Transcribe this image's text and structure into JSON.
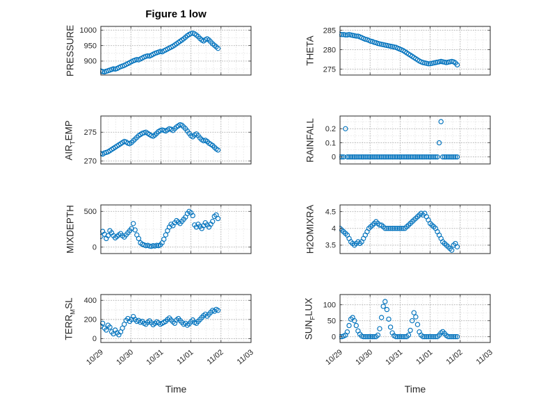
{
  "figure": {
    "title": "Figure 1 low",
    "xlabel": "Time",
    "marker_color": "#0072BD",
    "axes_color": "#262626",
    "grid_color": "#ababab",
    "minor_grid_color": "#e2e2e2",
    "background": "#ffffff"
  },
  "chart_data": {
    "type": "scatter",
    "marker": "open-circle",
    "grid": "dotted, major and minor",
    "legend": "none",
    "xlabel": "Time",
    "xlim": [
      0,
      5
    ],
    "xticks": [
      0,
      1,
      2,
      3,
      4,
      5
    ],
    "x_tick_labels": [
      "10/29",
      "10/30",
      "10/31",
      "11/01",
      "11/02",
      "11/03"
    ],
    "x_days": [
      0,
      0.06,
      0.12,
      0.18,
      0.24,
      0.3,
      0.36,
      0.42,
      0.48,
      0.54,
      0.6,
      0.66,
      0.72,
      0.78,
      0.84,
      0.9,
      0.96,
      1.02,
      1.08,
      1.14,
      1.2,
      1.26,
      1.32,
      1.38,
      1.44,
      1.5,
      1.56,
      1.62,
      1.68,
      1.74,
      1.8,
      1.86,
      1.92,
      1.98,
      2.04,
      2.1,
      2.16,
      2.22,
      2.28,
      2.34,
      2.4,
      2.46,
      2.52,
      2.58,
      2.64,
      2.7,
      2.76,
      2.82,
      2.88,
      2.94,
      3.0,
      3.06,
      3.12,
      3.18,
      3.24,
      3.3,
      3.36,
      3.42,
      3.48,
      3.54,
      3.6,
      3.66,
      3.72,
      3.78,
      3.84,
      3.9
    ],
    "charts": [
      {
        "id": "pressure",
        "ylabel": "PRESSURE",
        "ylabel_parts": [
          {
            "t": "PRESSURE"
          }
        ],
        "yticks": [
          900,
          950,
          1000
        ],
        "ylim": [
          855,
          1012
        ],
        "values": [
          868,
          866,
          865,
          867,
          869,
          871,
          873,
          875,
          874,
          876,
          879,
          882,
          884,
          886,
          889,
          892,
          895,
          898,
          901,
          903,
          905,
          904,
          907,
          910,
          913,
          915,
          917,
          916,
          919,
          922,
          925,
          927,
          929,
          931,
          930,
          933,
          936,
          939,
          942,
          945,
          948,
          952,
          956,
          960,
          964,
          968,
          972,
          977,
          982,
          986,
          989,
          990,
          988,
          984,
          979,
          973,
          968,
          965,
          969,
          972,
          968,
          962,
          956,
          951,
          946,
          941
        ]
      },
      {
        "id": "theta",
        "ylabel": "THETA",
        "ylabel_parts": [
          {
            "t": "THETA"
          }
        ],
        "yticks": [
          275,
          280,
          285
        ],
        "ylim": [
          273.5,
          286
        ],
        "values": [
          284,
          283.9,
          283.9,
          283.8,
          283.8,
          283.9,
          283.8,
          283.7,
          283.6,
          283.5,
          283.5,
          283.3,
          283.1,
          282.9,
          282.7,
          282.6,
          282.4,
          282.2,
          282.1,
          281.9,
          281.8,
          281.6,
          281.5,
          281.4,
          281.3,
          281.2,
          281.1,
          281,
          280.9,
          280.8,
          280.7,
          280.6,
          280.4,
          280.2,
          280,
          279.8,
          279.5,
          279.2,
          278.9,
          278.6,
          278.3,
          278,
          277.7,
          277.4,
          277.1,
          276.9,
          276.7,
          276.6,
          276.5,
          276.4,
          276.4,
          276.5,
          276.6,
          276.7,
          276.8,
          276.9,
          277,
          276.9,
          276.8,
          276.7,
          276.8,
          276.9,
          277,
          276.9,
          276.6,
          276.1
        ]
      },
      {
        "id": "air-temp",
        "ylabel": "AIR_TEMP",
        "ylabel_parts": [
          {
            "t": "AIR"
          },
          {
            "t": "T",
            "sub": true
          },
          {
            "t": "EMP"
          }
        ],
        "yticks": [
          270,
          275
        ],
        "ylim": [
          269.5,
          277.8
        ],
        "values": [
          271.3,
          271.2,
          271.4,
          271.5,
          271.6,
          271.8,
          272,
          272.2,
          272.4,
          272.6,
          272.8,
          273,
          273.2,
          273.4,
          273.3,
          273.1,
          273,
          273.2,
          273.5,
          273.8,
          274.1,
          274.4,
          274.6,
          274.8,
          274.9,
          275,
          274.8,
          274.6,
          274.4,
          274.3,
          274.5,
          274.8,
          275.1,
          275.3,
          275.4,
          275.3,
          275.2,
          275.4,
          275.6,
          275.5,
          275.3,
          275.6,
          275.9,
          276.1,
          276.3,
          276.2,
          275.9,
          275.6,
          275.2,
          274.8,
          274.4,
          274.2,
          274.5,
          274.7,
          274.4,
          274,
          273.7,
          273.5,
          273.6,
          273.4,
          273.1,
          272.9,
          272.7,
          272.4,
          272.1,
          271.9
        ]
      },
      {
        "id": "rainfall",
        "ylabel": "RAINFALL",
        "ylabel_parts": [
          {
            "t": "RAINFALL"
          }
        ],
        "yticks": [
          0,
          0.1,
          0.2
        ],
        "ylim": [
          -0.05,
          0.29
        ],
        "values": [
          0,
          0,
          0,
          0.2,
          0,
          0,
          0,
          0,
          0,
          0,
          0,
          0,
          0,
          0,
          0,
          0,
          0,
          0,
          0,
          0,
          0,
          0,
          0,
          0,
          0,
          0,
          0,
          0,
          0,
          0,
          0,
          0,
          0,
          0,
          0,
          0,
          0,
          0,
          0,
          0,
          0,
          0,
          0,
          0,
          0,
          0,
          0,
          0,
          0,
          0,
          0,
          0,
          0,
          0,
          0,
          0.1,
          0.25,
          0,
          0,
          0,
          0,
          0,
          0,
          0,
          0,
          0
        ]
      },
      {
        "id": "mixdepth",
        "ylabel": "MIXDEPTH",
        "ylabel_parts": [
          {
            "t": "MIXDEPTH"
          }
        ],
        "yticks": [
          0,
          500
        ],
        "ylim": [
          -90,
          590
        ],
        "values": [
          150,
          220,
          180,
          120,
          160,
          230,
          200,
          160,
          130,
          150,
          170,
          190,
          160,
          140,
          170,
          200,
          230,
          260,
          330,
          240,
          170,
          120,
          60,
          40,
          30,
          20,
          25,
          15,
          10,
          20,
          15,
          25,
          20,
          30,
          60,
          110,
          170,
          230,
          280,
          320,
          300,
          340,
          370,
          350,
          330,
          360,
          390,
          420,
          470,
          500,
          480,
          440,
          310,
          280,
          320,
          290,
          260,
          300,
          340,
          310,
          280,
          320,
          360,
          430,
          450,
          400
        ]
      },
      {
        "id": "h2omixra",
        "ylabel": "H2OMIXRA",
        "ylabel_parts": [
          {
            "t": "H2OMIXRA"
          }
        ],
        "yticks": [
          3.5,
          4,
          4.5
        ],
        "ylim": [
          3.25,
          4.7
        ],
        "values": [
          4,
          3.95,
          3.9,
          3.85,
          3.8,
          3.7,
          3.6,
          3.55,
          3.5,
          3.55,
          3.6,
          3.55,
          3.6,
          3.7,
          3.8,
          3.9,
          4,
          4.05,
          4.1,
          4.15,
          4.2,
          4.15,
          4.1,
          4.1,
          4.05,
          4,
          4,
          4,
          4,
          4,
          4,
          4,
          4,
          4,
          4,
          4,
          4,
          4.05,
          4.1,
          4.15,
          4.2,
          4.25,
          4.3,
          4.35,
          4.4,
          4.45,
          4.4,
          4.45,
          4.35,
          4.25,
          4.15,
          4.1,
          4.05,
          4,
          3.9,
          3.8,
          3.7,
          3.6,
          3.55,
          3.5,
          3.45,
          3.4,
          3.35,
          3.5,
          3.55,
          3.45
        ]
      },
      {
        "id": "terr-msl",
        "ylabel": "TERR_MSL",
        "ylabel_parts": [
          {
            "t": "TERR"
          },
          {
            "t": "M",
            "sub": true
          },
          {
            "t": "SL"
          }
        ],
        "yticks": [
          0,
          200,
          400
        ],
        "ylim": [
          -40,
          460
        ],
        "values": [
          130,
          160,
          110,
          90,
          140,
          120,
          70,
          50,
          90,
          60,
          40,
          70,
          110,
          150,
          190,
          210,
          180,
          200,
          230,
          200,
          180,
          190,
          170,
          180,
          160,
          150,
          170,
          185,
          165,
          145,
          160,
          175,
          165,
          150,
          160,
          170,
          180,
          200,
          215,
          195,
          175,
          160,
          195,
          210,
          190,
          170,
          150,
          160,
          140,
          155,
          175,
          195,
          170,
          160,
          180,
          200,
          220,
          240,
          255,
          235,
          255,
          275,
          295,
          285,
          305,
          295
        ]
      },
      {
        "id": "sun-flux",
        "ylabel": "SUN_FLUX",
        "ylabel_parts": [
          {
            "t": "SUN"
          },
          {
            "t": "F",
            "sub": true
          },
          {
            "t": "LUX"
          }
        ],
        "yticks": [
          0,
          50,
          100
        ],
        "ylim": [
          -18,
          132
        ],
        "values": [
          0,
          0,
          2,
          5,
          15,
          35,
          55,
          60,
          50,
          35,
          18,
          8,
          2,
          0,
          0,
          0,
          0,
          0,
          0,
          0,
          0,
          5,
          25,
          60,
          95,
          110,
          85,
          55,
          30,
          12,
          3,
          0,
          0,
          0,
          0,
          0,
          0,
          0,
          5,
          20,
          50,
          75,
          62,
          38,
          15,
          5,
          0,
          0,
          0,
          0,
          0,
          0,
          0,
          0,
          0,
          5,
          12,
          16,
          10,
          4,
          0,
          0,
          0,
          0,
          0,
          0
        ]
      }
    ]
  }
}
